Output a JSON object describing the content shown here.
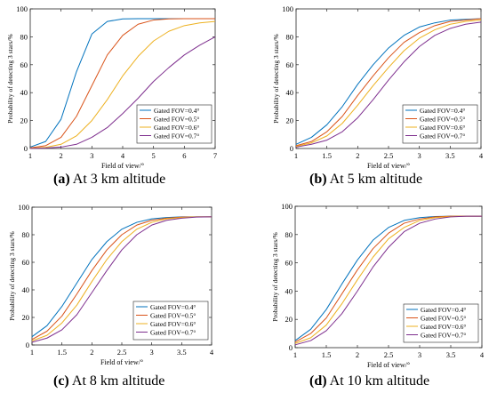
{
  "chart_data": [
    {
      "type": "line",
      "caption_id": "(a)",
      "caption_text": " At 3 km altitude",
      "xlabel": "Field of view/°",
      "ylabel": "Probability of detecting 3 stars/%",
      "xlim": [
        1,
        7
      ],
      "ylim": [
        0,
        100
      ],
      "xticks": [
        1,
        2,
        3,
        4,
        5,
        6,
        7
      ],
      "yticks": [
        0,
        20,
        40,
        60,
        80,
        100
      ],
      "legend_position": "lower-right",
      "series": [
        {
          "name": "Gated FOV=0.4°",
          "color": "#0072BD",
          "x": [
            1,
            1.5,
            2,
            2.5,
            3,
            3.5,
            4,
            4.5,
            5,
            5.5,
            6,
            6.5,
            7
          ],
          "y": [
            1,
            5,
            21,
            55,
            82,
            91,
            92.8,
            93,
            93,
            93,
            93,
            93,
            93
          ]
        },
        {
          "name": "Gated FOV=0.5°",
          "color": "#D95319",
          "x": [
            1,
            1.5,
            2,
            2.5,
            3,
            3.5,
            4,
            4.5,
            5,
            5.5,
            6,
            6.5,
            7
          ],
          "y": [
            0.5,
            2,
            8,
            23,
            45,
            67,
            81,
            89,
            92,
            92.8,
            93,
            93,
            93
          ]
        },
        {
          "name": "Gated FOV=0.6°",
          "color": "#EDB120",
          "x": [
            1,
            1.5,
            2,
            2.5,
            3,
            3.5,
            4,
            4.5,
            5,
            5.5,
            6,
            6.5,
            7
          ],
          "y": [
            0.2,
            0.8,
            3,
            9,
            20,
            35,
            52,
            66,
            77,
            84,
            88,
            90,
            91
          ]
        },
        {
          "name": "Gated FOV=0.7°",
          "color": "#7E2F8E",
          "x": [
            1,
            1.5,
            2,
            2.5,
            3,
            3.5,
            4,
            4.5,
            5,
            5.5,
            6,
            6.5,
            7
          ],
          "y": [
            0,
            0.3,
            1,
            3,
            8,
            15,
            25,
            36,
            48,
            58,
            67,
            74,
            80
          ]
        }
      ]
    },
    {
      "type": "line",
      "caption_id": "(b)",
      "caption_text": " At 5 km altitude",
      "xlabel": "Field of view/°",
      "ylabel": "Probability of detecting 3 stars/%",
      "xlim": [
        1,
        4
      ],
      "ylim": [
        0,
        100
      ],
      "xticks": [
        1,
        1.5,
        2,
        2.5,
        3,
        3.5,
        4
      ],
      "yticks": [
        0,
        20,
        40,
        60,
        80,
        100
      ],
      "legend_position": "lower-right",
      "series": [
        {
          "name": "Gated FOV=0.4°",
          "color": "#0072BD",
          "x": [
            1,
            1.25,
            1.5,
            1.75,
            2,
            2.25,
            2.5,
            2.75,
            3,
            3.25,
            3.5,
            3.75,
            4
          ],
          "y": [
            3,
            8,
            17,
            30,
            46,
            60,
            72,
            81,
            87,
            90,
            92,
            92.5,
            93
          ]
        },
        {
          "name": "Gated FOV=0.5°",
          "color": "#D95319",
          "x": [
            1,
            1.25,
            1.5,
            1.75,
            2,
            2.25,
            2.5,
            2.75,
            3,
            3.25,
            3.5,
            3.75,
            4
          ],
          "y": [
            2,
            5,
            12,
            23,
            38,
            52,
            65,
            76,
            83,
            88,
            91,
            92,
            93
          ]
        },
        {
          "name": "Gated FOV=0.6°",
          "color": "#EDB120",
          "x": [
            1,
            1.25,
            1.5,
            1.75,
            2,
            2.25,
            2.5,
            2.75,
            3,
            3.25,
            3.5,
            3.75,
            4
          ],
          "y": [
            1.5,
            4,
            9,
            18,
            31,
            45,
            58,
            70,
            79,
            85,
            89,
            91,
            92
          ]
        },
        {
          "name": "Gated FOV=0.7°",
          "color": "#7E2F8E",
          "x": [
            1,
            1.25,
            1.5,
            1.75,
            2,
            2.25,
            2.5,
            2.75,
            3,
            3.25,
            3.5,
            3.75,
            4
          ],
          "y": [
            1,
            3,
            6,
            12,
            22,
            35,
            49,
            62,
            73,
            81,
            86,
            89,
            90.5
          ]
        }
      ]
    },
    {
      "type": "line",
      "caption_id": "(c)",
      "caption_text": " At 8 km altitude",
      "xlabel": "Field of view/°",
      "ylabel": "Probability of detecting 3 stars/%",
      "xlim": [
        1,
        4
      ],
      "ylim": [
        0,
        100
      ],
      "xticks": [
        1,
        1.5,
        2,
        2.5,
        3,
        3.5,
        4
      ],
      "yticks": [
        0,
        20,
        40,
        60,
        80,
        100
      ],
      "legend_position": "lower-right",
      "series": [
        {
          "name": "Gated FOV=0.4°",
          "color": "#0072BD",
          "x": [
            1,
            1.25,
            1.5,
            1.75,
            2,
            2.25,
            2.5,
            2.75,
            3,
            3.25,
            3.5,
            3.75,
            4
          ],
          "y": [
            6,
            14,
            28,
            45,
            62,
            75,
            84,
            89,
            91.5,
            92.5,
            93,
            93,
            93
          ]
        },
        {
          "name": "Gated FOV=0.5°",
          "color": "#D95319",
          "x": [
            1,
            1.25,
            1.5,
            1.75,
            2,
            2.25,
            2.5,
            2.75,
            3,
            3.25,
            3.5,
            3.75,
            4
          ],
          "y": [
            4,
            10,
            21,
            37,
            54,
            69,
            80,
            87,
            90.5,
            92,
            92.8,
            93,
            93
          ]
        },
        {
          "name": "Gated FOV=0.6°",
          "color": "#EDB120",
          "x": [
            1,
            1.25,
            1.5,
            1.75,
            2,
            2.25,
            2.5,
            2.75,
            3,
            3.25,
            3.5,
            3.75,
            4
          ],
          "y": [
            3,
            7,
            16,
            29,
            46,
            62,
            75,
            84,
            89,
            91.5,
            92.5,
            93,
            93
          ]
        },
        {
          "name": "Gated FOV=0.7°",
          "color": "#7E2F8E",
          "x": [
            1,
            1.25,
            1.5,
            1.75,
            2,
            2.25,
            2.5,
            2.75,
            3,
            3.25,
            3.5,
            3.75,
            4
          ],
          "y": [
            2,
            5,
            11,
            22,
            38,
            54,
            69,
            80,
            87,
            90.5,
            92,
            92.8,
            93
          ]
        }
      ]
    },
    {
      "type": "line",
      "caption_id": "(d)",
      "caption_text": " At 10 km altitude",
      "xlabel": "Field of view/°",
      "ylabel": "Probability of detecting 3 stars/%",
      "xlim": [
        1,
        4
      ],
      "ylim": [
        0,
        100
      ],
      "xticks": [
        1,
        1.5,
        2,
        2.5,
        3,
        3.5,
        4
      ],
      "yticks": [
        0,
        20,
        40,
        60,
        80,
        100
      ],
      "legend_position": "lower-right",
      "series": [
        {
          "name": "Gated FOV=0.4°",
          "color": "#0072BD",
          "x": [
            1,
            1.25,
            1.5,
            1.75,
            2,
            2.25,
            2.5,
            2.75,
            3,
            3.25,
            3.5,
            3.75,
            4
          ],
          "y": [
            5,
            13,
            27,
            45,
            62,
            76,
            85,
            90,
            92,
            92.8,
            93,
            93,
            93
          ]
        },
        {
          "name": "Gated FOV=0.5°",
          "color": "#D95319",
          "x": [
            1,
            1.25,
            1.5,
            1.75,
            2,
            2.25,
            2.5,
            2.75,
            3,
            3.25,
            3.5,
            3.75,
            4
          ],
          "y": [
            4,
            10,
            21,
            38,
            55,
            70,
            81,
            88,
            91,
            92.5,
            93,
            93,
            93
          ]
        },
        {
          "name": "Gated FOV=0.6°",
          "color": "#EDB120",
          "x": [
            1,
            1.25,
            1.5,
            1.75,
            2,
            2.25,
            2.5,
            2.75,
            3,
            3.25,
            3.5,
            3.75,
            4
          ],
          "y": [
            3,
            7,
            16,
            31,
            48,
            64,
            77,
            85,
            90,
            92,
            92.8,
            93,
            93
          ]
        },
        {
          "name": "Gated FOV=0.7°",
          "color": "#7E2F8E",
          "x": [
            1,
            1.25,
            1.5,
            1.75,
            2,
            2.25,
            2.5,
            2.75,
            3,
            3.25,
            3.5,
            3.75,
            4
          ],
          "y": [
            2,
            5,
            12,
            24,
            40,
            57,
            71,
            82,
            88,
            91,
            92.5,
            93,
            93
          ]
        }
      ]
    }
  ]
}
